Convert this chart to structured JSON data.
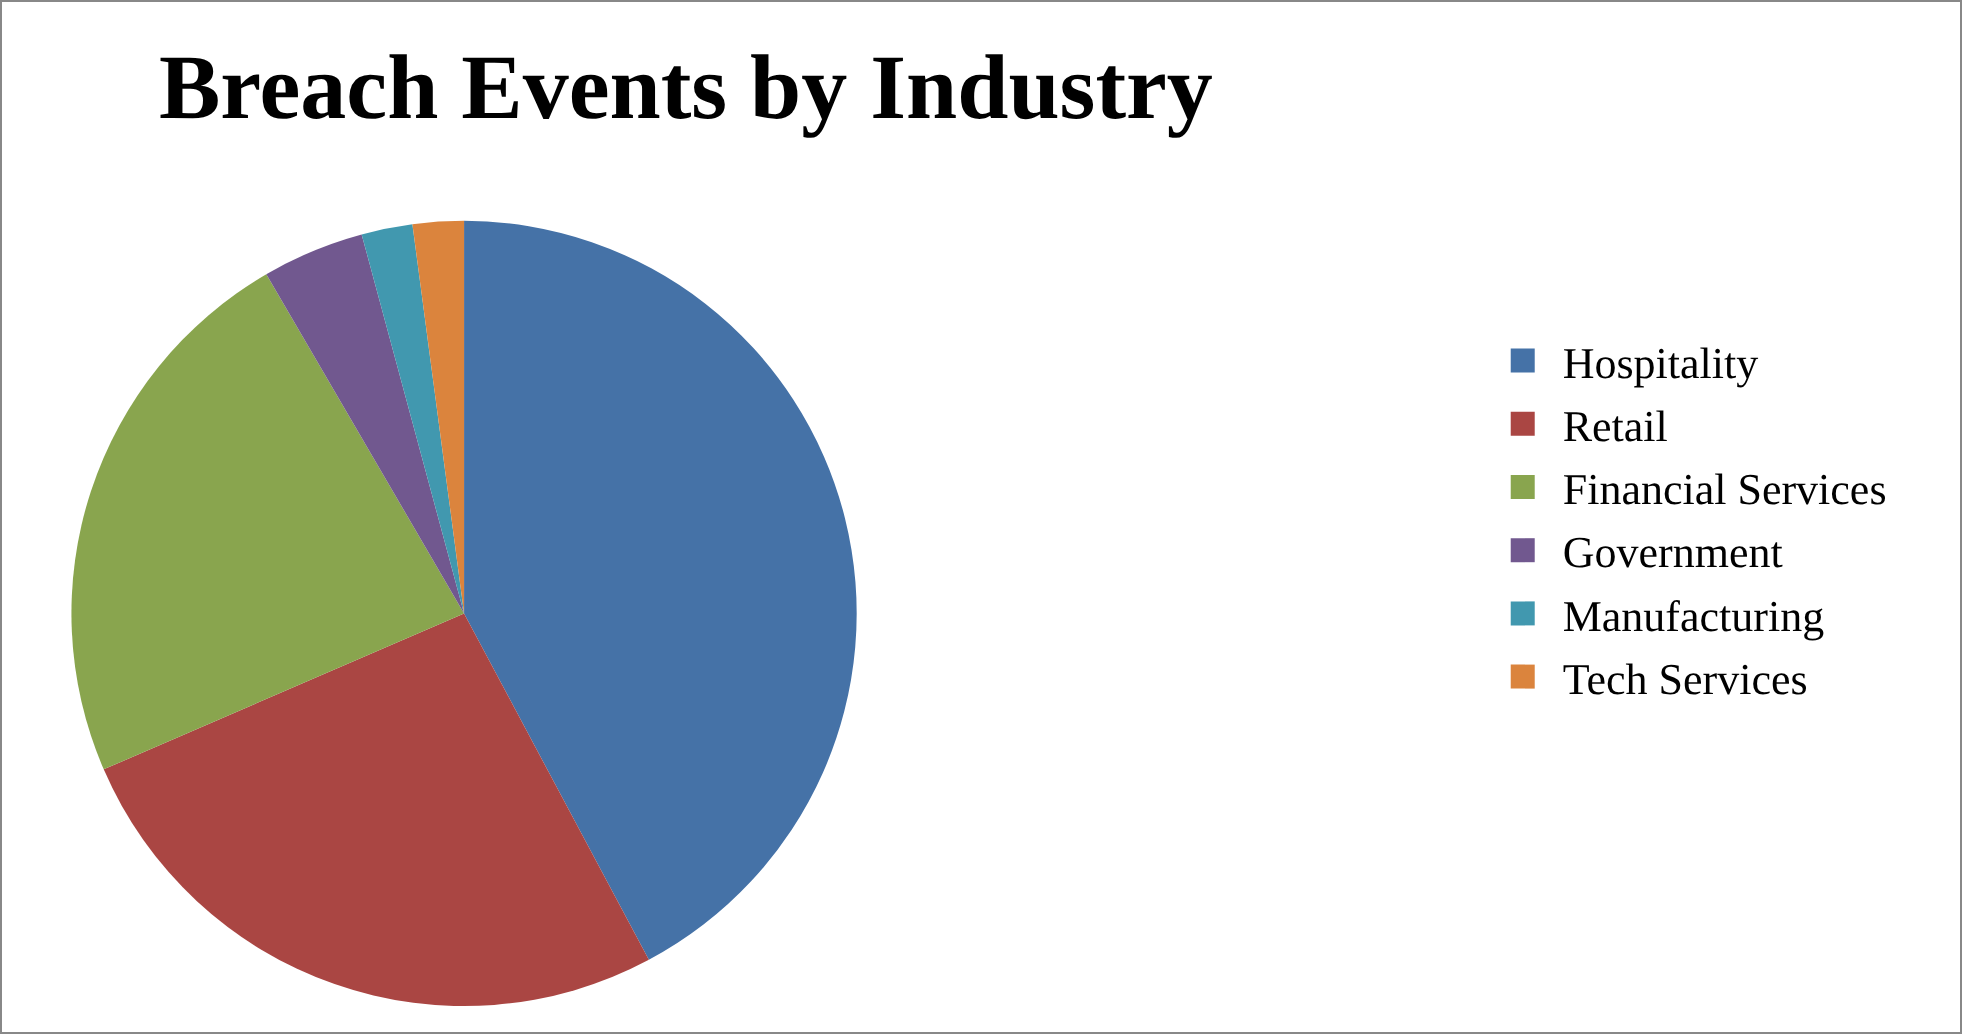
{
  "chart_data": {
    "type": "pie",
    "title": "Breach Events by Industry",
    "categories": [
      "Hospitality",
      "Retail",
      "Financial Services",
      "Government",
      "Manufacturing",
      "Tech Services"
    ],
    "values": [
      42.2,
      26.3,
      23.1,
      4.2,
      2.1,
      2.1
    ],
    "colors": [
      "#4572a7",
      "#aa4643",
      "#89a54e",
      "#71588f",
      "#4198af",
      "#db843d"
    ],
    "legend": "right"
  }
}
